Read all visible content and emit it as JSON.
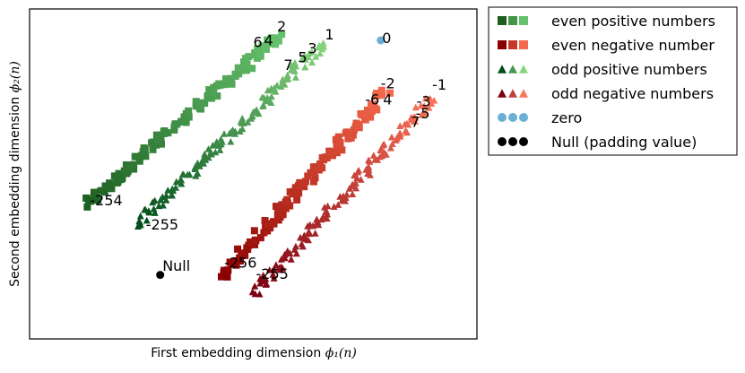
{
  "chart_data": {
    "type": "scatter",
    "title": "",
    "xlabel": "First embedding dimension",
    "xlabel_math": "ϕ₁(n)",
    "ylabel": "Second embedding dimension",
    "ylabel_math": "ϕ₂(n)",
    "xlim": [
      0,
      100
    ],
    "ylim": [
      0,
      100
    ],
    "grid": false,
    "ticks_visible": false,
    "legend_position": "upper-right, outside axes",
    "series": [
      {
        "name": "even positive numbers",
        "marker": "square",
        "color_start": "#1b5e20",
        "color_end": "#66c16d",
        "band": {
          "from": [
            12.5,
            40.5
          ],
          "to": [
            55.5,
            91.5
          ],
          "count": 130,
          "spread": 1.3
        }
      },
      {
        "name": "even negative number",
        "marker": "square",
        "color_start": "#8b0000",
        "color_end": "#f4684b",
        "band": {
          "from": [
            43.5,
            19.5
          ],
          "to": [
            79.5,
            75.0
          ],
          "count": 130,
          "spread": 1.3
        }
      },
      {
        "name": "odd positive numbers",
        "marker": "triangle",
        "color_start": "#004d1a",
        "color_end": "#86d47e",
        "band": {
          "from": [
            24.0,
            35.0
          ],
          "to": [
            66.0,
            90.0
          ],
          "count": 130,
          "spread": 1.3
        }
      },
      {
        "name": "odd negative numbers",
        "marker": "triangle",
        "color_start": "#7a0010",
        "color_end": "#fb7358",
        "band": {
          "from": [
            50.5,
            14.5
          ],
          "to": [
            90.0,
            73.0
          ],
          "count": 130,
          "spread": 1.3
        }
      },
      {
        "name": "zero",
        "marker": "circle",
        "color": "#6baed6",
        "points": [
          {
            "x": 78.5,
            "y": 90.5
          }
        ]
      },
      {
        "name": "Null (padding value)",
        "marker": "circle",
        "color": "#000000",
        "points": [
          {
            "x": 29.2,
            "y": 19.4
          }
        ]
      }
    ],
    "annotations": [
      {
        "text": "2",
        "x": 55.3,
        "y": 93.2
      },
      {
        "text": "6",
        "x": 50.0,
        "y": 88.5
      },
      {
        "text": "4",
        "x": 52.4,
        "y": 89.0
      },
      {
        "text": "1",
        "x": 66.0,
        "y": 90.7
      },
      {
        "text": "3",
        "x": 62.2,
        "y": 86.6
      },
      {
        "text": "5",
        "x": 60.0,
        "y": 83.8
      },
      {
        "text": "7",
        "x": 56.8,
        "y": 81.5
      },
      {
        "text": "0",
        "x": 78.8,
        "y": 89.7
      },
      {
        "text": "-2",
        "x": 78.5,
        "y": 76.0
      },
      {
        "text": "-6",
        "x": 75.0,
        "y": 71.0
      },
      {
        "text": "4",
        "x": 79.0,
        "y": 71.0
      },
      {
        "text": "-1",
        "x": 90.0,
        "y": 75.5
      },
      {
        "text": "-3",
        "x": 86.5,
        "y": 70.5
      },
      {
        "text": "-5",
        "x": 86.3,
        "y": 66.8
      },
      {
        "text": "7",
        "x": 85.2,
        "y": 64.2
      },
      {
        "text": "-254",
        "x": 13.5,
        "y": 40.5
      },
      {
        "text": "-255",
        "x": 26.0,
        "y": 33.2
      },
      {
        "text": "Null",
        "x": 29.7,
        "y": 20.6
      },
      {
        "text": "-256",
        "x": 43.5,
        "y": 21.6
      },
      {
        "text": "-255",
        "x": 50.6,
        "y": 18.2
      }
    ]
  }
}
